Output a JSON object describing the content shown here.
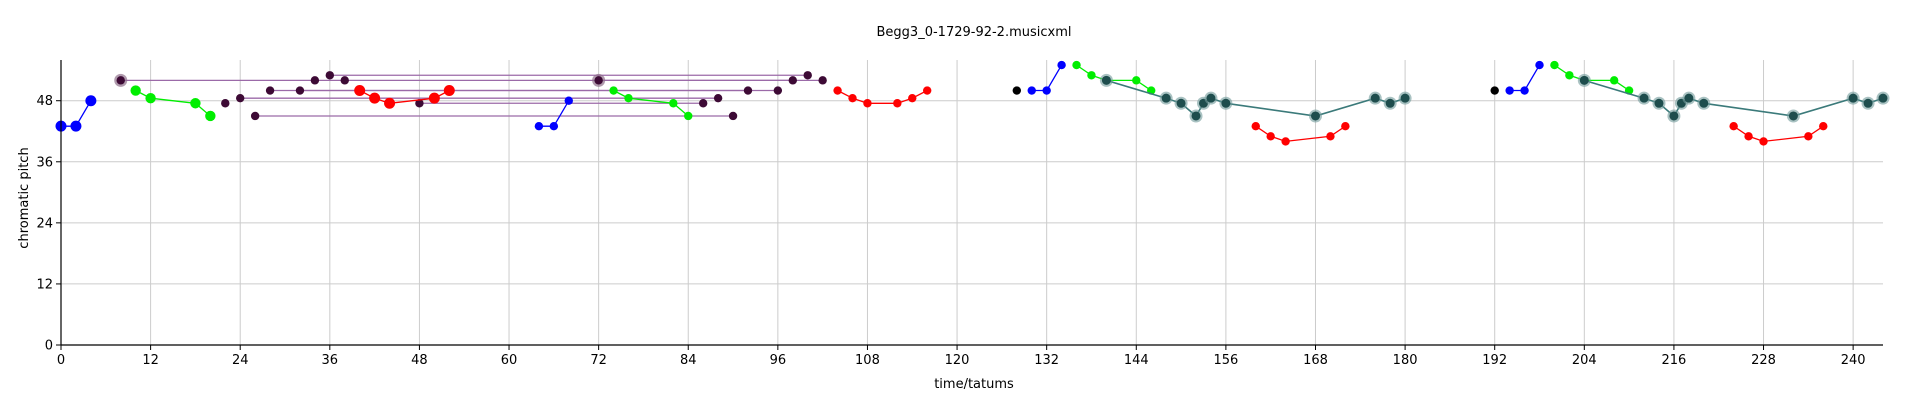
{
  "chart_data": {
    "type": "scatter",
    "title": "Begg3_0-1729-92-2.musicxml",
    "xlabel": "time/tatums",
    "ylabel": "chromatic pitch",
    "xlim": [
      0,
      244
    ],
    "ylim": [
      0,
      56
    ],
    "xticks": [
      0,
      12,
      24,
      36,
      48,
      60,
      72,
      84,
      96,
      108,
      120,
      132,
      144,
      156,
      168,
      180,
      192,
      204,
      216,
      228,
      240
    ],
    "yticks": [
      0,
      12,
      24,
      36,
      48
    ],
    "grid": true,
    "colors": {
      "blue": "#0000ff",
      "green": "#00ee00",
      "red": "#ff0000",
      "dark": "#3d0a35",
      "teal": "#1e4d4d",
      "black": "#000000",
      "purple_line": "#9b6aa8",
      "teal_line": "#3b7a7a",
      "grid": "#cccccc"
    },
    "groups": [
      {
        "color": "blue",
        "connect": true,
        "points": [
          [
            0,
            43
          ],
          [
            2,
            43
          ],
          [
            4,
            48
          ]
        ]
      },
      {
        "color": "green",
        "connect": true,
        "points": [
          [
            10,
            50
          ],
          [
            12,
            48.5
          ],
          [
            18,
            47.5
          ],
          [
            20,
            45
          ]
        ]
      },
      {
        "color": "dark",
        "connect": false,
        "points": [
          [
            8,
            52
          ],
          [
            22,
            47.5
          ],
          [
            24,
            48.5
          ],
          [
            26,
            45
          ],
          [
            28,
            50
          ],
          [
            32,
            50
          ],
          [
            34,
            52
          ],
          [
            36,
            53
          ],
          [
            38,
            52
          ],
          [
            48,
            47.5
          ],
          [
            72,
            52
          ],
          [
            86,
            47.5
          ],
          [
            88,
            48.5
          ],
          [
            90,
            45
          ],
          [
            92,
            50
          ],
          [
            96,
            50
          ],
          [
            98,
            52
          ],
          [
            100,
            53
          ],
          [
            102,
            52
          ]
        ]
      },
      {
        "color": "red",
        "connect": true,
        "points": [
          [
            40,
            50
          ],
          [
            42,
            48.5
          ],
          [
            44,
            47.5
          ],
          [
            50,
            48.5
          ],
          [
            52,
            50
          ]
        ]
      },
      {
        "color": "blue",
        "connect": true,
        "points": [
          [
            64,
            43
          ],
          [
            66,
            43
          ],
          [
            68,
            48
          ]
        ]
      },
      {
        "color": "green",
        "connect": true,
        "points": [
          [
            74,
            50
          ],
          [
            76,
            48.5
          ],
          [
            82,
            47.5
          ],
          [
            84,
            45
          ]
        ]
      },
      {
        "color": "red",
        "connect": true,
        "points": [
          [
            104,
            50
          ],
          [
            106,
            48.5
          ],
          [
            108,
            47.5
          ],
          [
            112,
            47.5
          ],
          [
            114,
            48.5
          ],
          [
            116,
            50
          ]
        ]
      },
      {
        "color": "black",
        "connect": false,
        "points": [
          [
            128,
            50
          ]
        ]
      },
      {
        "color": "blue",
        "connect": true,
        "points": [
          [
            130,
            50
          ],
          [
            132,
            50
          ],
          [
            134,
            55
          ]
        ]
      },
      {
        "color": "green",
        "connect": true,
        "points": [
          [
            136,
            55
          ],
          [
            138,
            53
          ],
          [
            140,
            52
          ],
          [
            144,
            52
          ],
          [
            146,
            50
          ]
        ]
      },
      {
        "color": "teal",
        "connect": true,
        "points": [
          [
            140,
            52
          ],
          [
            148,
            48.5
          ],
          [
            150,
            47.5
          ],
          [
            152,
            45
          ],
          [
            153,
            47.5
          ],
          [
            154,
            48.5
          ],
          [
            156,
            47.5
          ],
          [
            168,
            45
          ],
          [
            176,
            48.5
          ],
          [
            178,
            47.5
          ],
          [
            180,
            48.5
          ]
        ]
      },
      {
        "color": "red",
        "connect": true,
        "points": [
          [
            160,
            43
          ],
          [
            162,
            41
          ],
          [
            164,
            40
          ],
          [
            170,
            41
          ],
          [
            172,
            43
          ]
        ]
      },
      {
        "color": "black",
        "connect": false,
        "points": [
          [
            192,
            50
          ]
        ]
      },
      {
        "color": "blue",
        "connect": true,
        "points": [
          [
            194,
            50
          ],
          [
            196,
            50
          ],
          [
            198,
            55
          ]
        ]
      },
      {
        "color": "green",
        "connect": true,
        "points": [
          [
            200,
            55
          ],
          [
            202,
            53
          ],
          [
            204,
            52
          ],
          [
            208,
            52
          ],
          [
            210,
            50
          ]
        ]
      },
      {
        "color": "teal",
        "connect": true,
        "points": [
          [
            204,
            52
          ],
          [
            212,
            48.5
          ],
          [
            214,
            47.5
          ],
          [
            216,
            45
          ],
          [
            217,
            47.5
          ],
          [
            218,
            48.5
          ],
          [
            220,
            47.5
          ],
          [
            232,
            45
          ],
          [
            240,
            48.5
          ],
          [
            242,
            47.5
          ],
          [
            244,
            48.5
          ]
        ]
      },
      {
        "color": "red",
        "connect": true,
        "points": [
          [
            224,
            43
          ],
          [
            226,
            41
          ],
          [
            228,
            40
          ],
          [
            234,
            41
          ],
          [
            236,
            43
          ]
        ]
      }
    ],
    "ties": [
      [
        8,
        102,
        52
      ],
      [
        24,
        88,
        48.5
      ],
      [
        26,
        90,
        45
      ],
      [
        28,
        92,
        50
      ],
      [
        32,
        96,
        50
      ],
      [
        48,
        86,
        47.5
      ],
      [
        72,
        98,
        52
      ],
      [
        36,
        100,
        53
      ]
    ]
  }
}
